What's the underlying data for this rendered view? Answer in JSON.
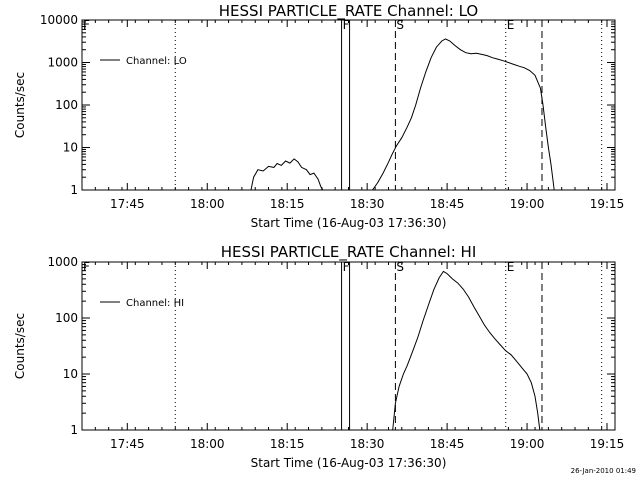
{
  "chart_data": [
    {
      "type": "line",
      "title": "HESSI PARTICLE_RATE Channel: LO",
      "ylabel": "Counts/sec",
      "xlabel": "Start Time (16-Aug-03 17:36:30)",
      "x_unit": "minutes after 17:36:30 UT",
      "xlim": [
        0,
        100
      ],
      "ylim": [
        1,
        10000
      ],
      "yscale": "log",
      "x_tick_labels": [
        "17:45",
        "18:00",
        "18:15",
        "18:30",
        "18:45",
        "19:00",
        "19:15"
      ],
      "x_tick_values": [
        8.5,
        23.5,
        38.5,
        53.5,
        68.5,
        83.5,
        98.5
      ],
      "y_tick_labels": [
        "1",
        "10",
        "100",
        "1000",
        "10000"
      ],
      "y_tick_values": [
        1,
        10,
        100,
        1000,
        10000
      ],
      "legend": {
        "label": "Channel: LO",
        "position": "top-left"
      },
      "markers": {
        "dotted": [
          17.5,
          79.5,
          97.5
        ],
        "solid": [
          48.7,
          50.2
        ],
        "dashed": [
          58.8,
          86.3
        ],
        "flags": [
          {
            "label": "F",
            "x": 0
          },
          {
            "label": "F",
            "x": 48.7
          },
          {
            "label": "S",
            "x": 58.8
          },
          {
            "label": "E",
            "x": 79.5
          }
        ]
      },
      "series": [
        {
          "name": "Channel: LO",
          "segments": [
            [
              [
                31.7,
                1
              ],
              [
                32.2,
                2
              ],
              [
                33,
                3
              ],
              [
                34,
                2.8
              ],
              [
                35,
                3.6
              ],
              [
                36,
                3.4
              ],
              [
                36.6,
                4.2
              ],
              [
                37.4,
                3.8
              ],
              [
                38.2,
                4.8
              ],
              [
                39,
                4.3
              ],
              [
                39.8,
                5.4
              ],
              [
                40.5,
                4.6
              ],
              [
                41.2,
                3.4
              ],
              [
                42.1,
                3
              ],
              [
                42.8,
                2.3
              ],
              [
                43.5,
                2.5
              ],
              [
                44.3,
                1.8
              ],
              [
                44.8,
                1.2
              ],
              [
                45.2,
                1
              ]
            ],
            [
              [
                54.5,
                1
              ],
              [
                55.5,
                1.5
              ],
              [
                56.5,
                2.5
              ],
              [
                57.5,
                4.5
              ],
              [
                58.2,
                7
              ],
              [
                59,
                11
              ],
              [
                60,
                17
              ],
              [
                61,
                30
              ],
              [
                61.8,
                50
              ],
              [
                62.6,
                100
              ],
              [
                63.5,
                250
              ],
              [
                64.5,
                600
              ],
              [
                65.5,
                1300
              ],
              [
                66.5,
                2300
              ],
              [
                67.5,
                3200
              ],
              [
                68.2,
                3600
              ],
              [
                69,
                3200
              ],
              [
                70,
                2500
              ],
              [
                71,
                2000
              ],
              [
                72,
                1700
              ],
              [
                73,
                1600
              ],
              [
                74,
                1650
              ],
              [
                75,
                1550
              ],
              [
                76,
                1450
              ],
              [
                77,
                1300
              ],
              [
                78,
                1200
              ],
              [
                79,
                1100
              ],
              [
                80,
                1000
              ],
              [
                81,
                900
              ],
              [
                82,
                820
              ],
              [
                83,
                750
              ],
              [
                84,
                650
              ],
              [
                85,
                500
              ],
              [
                86,
                250
              ],
              [
                86.5,
                100
              ],
              [
                87,
                30
              ],
              [
                87.5,
                10
              ],
              [
                88,
                4
              ],
              [
                88.6,
                1
              ]
            ]
          ]
        }
      ]
    },
    {
      "type": "line",
      "title": "HESSI PARTICLE_RATE Channel: HI",
      "ylabel": "Counts/sec",
      "xlabel": "Start Time (16-Aug-03 17:36:30)",
      "x_unit": "minutes after 17:36:30 UT",
      "xlim": [
        0,
        100
      ],
      "ylim": [
        1,
        1000
      ],
      "yscale": "log",
      "x_tick_labels": [
        "17:45",
        "18:00",
        "18:15",
        "18:30",
        "18:45",
        "19:00",
        "19:15"
      ],
      "x_tick_values": [
        8.5,
        23.5,
        38.5,
        53.5,
        68.5,
        83.5,
        98.5
      ],
      "y_tick_labels": [
        "1",
        "10",
        "100",
        "1000"
      ],
      "y_tick_values": [
        1,
        10,
        100,
        1000
      ],
      "legend": {
        "label": "Channel: HI",
        "position": "top-left"
      },
      "markers": {
        "dotted": [
          17.5,
          79.5,
          97.5
        ],
        "solid": [
          48.7,
          50.2
        ],
        "dashed": [
          58.8,
          86.3
        ],
        "flags": [
          {
            "label": "F",
            "x": 0
          },
          {
            "label": "F",
            "x": 48.7
          },
          {
            "label": "S",
            "x": 58.8
          },
          {
            "label": "E",
            "x": 79.5
          }
        ]
      },
      "series": [
        {
          "name": "Channel: HI",
          "segments": [
            [
              [
                58.3,
                1
              ],
              [
                58.8,
                3
              ],
              [
                59.5,
                6
              ],
              [
                60.3,
                10
              ],
              [
                61,
                14
              ],
              [
                62,
                25
              ],
              [
                63,
                45
              ],
              [
                64,
                90
              ],
              [
                65,
                170
              ],
              [
                66,
                320
              ],
              [
                67,
                520
              ],
              [
                67.8,
                680
              ],
              [
                68.5,
                620
              ],
              [
                69.5,
                500
              ],
              [
                70.5,
                420
              ],
              [
                71.5,
                330
              ],
              [
                72.5,
                240
              ],
              [
                73.5,
                160
              ],
              [
                74.5,
                110
              ],
              [
                75.5,
                75
              ],
              [
                76.5,
                55
              ],
              [
                77.5,
                42
              ],
              [
                78.5,
                33
              ],
              [
                79.5,
                26
              ],
              [
                80.5,
                22
              ],
              [
                81.5,
                17
              ],
              [
                82.5,
                13
              ],
              [
                83.5,
                10
              ],
              [
                84.3,
                7
              ],
              [
                85,
                4
              ],
              [
                85.5,
                2
              ],
              [
                85.9,
                1
              ]
            ]
          ]
        }
      ]
    }
  ],
  "footer": {
    "timestamp": "26-Jan-2010 01:49"
  }
}
